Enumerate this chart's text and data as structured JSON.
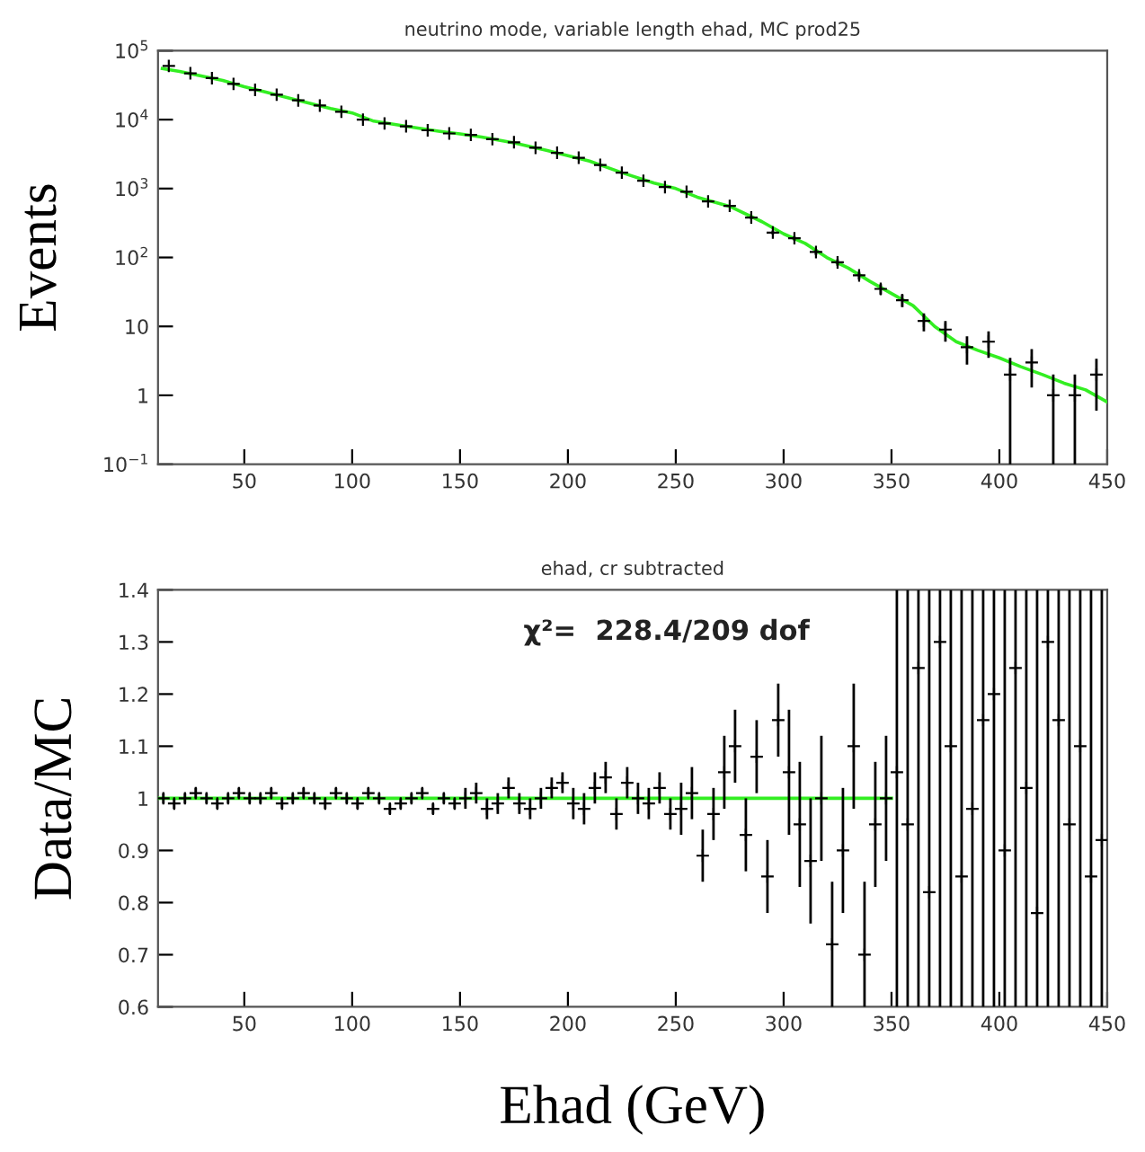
{
  "chart_data": [
    {
      "type": "scatter",
      "title": "neutrino mode, variable length ehad, MC prod25",
      "ylabel": "Events",
      "log": true,
      "xlim": [
        10,
        450
      ],
      "xticks": [
        50,
        100,
        150,
        200,
        250,
        300,
        350,
        400,
        450
      ],
      "ylim": [
        0.1,
        100000
      ],
      "yticks": [
        {
          "value": 0.1,
          "label": "10$^{−1}$"
        },
        1,
        10,
        {
          "value": 100,
          "label": "10$^{2}$"
        },
        {
          "value": 1000,
          "label": "10$^{3}$"
        },
        {
          "value": 10000,
          "label": "10$^{4}$"
        },
        {
          "value": 100000,
          "label": "10$^{5}$"
        }
      ],
      "series": [
        {
          "color": "#000000",
          "marker": "cross",
          "x": [
            15,
            25,
            35,
            45,
            55,
            65,
            75,
            85,
            95,
            105,
            115,
            125,
            135,
            145,
            155,
            165,
            175,
            185,
            195,
            205,
            215,
            225,
            235,
            245,
            255,
            265,
            275,
            285,
            295,
            305,
            315,
            325,
            335,
            345,
            355,
            365,
            375,
            385,
            395,
            405,
            415,
            425,
            435,
            445
          ],
          "values": [
            60000,
            47000,
            40000,
            33000,
            27000,
            23000,
            19000,
            16000,
            13000,
            10000,
            8800,
            8000,
            7000,
            6300,
            6000,
            5200,
            4700,
            3900,
            3300,
            2800,
            2200,
            1700,
            1300,
            1050,
            900,
            650,
            560,
            380,
            230,
            190,
            120,
            85,
            55,
            35,
            24,
            12,
            9,
            5,
            6,
            2,
            3,
            1,
            1,
            2
          ],
          "errors": [
            null,
            null,
            null,
            null,
            null,
            null,
            null,
            null,
            null,
            null,
            null,
            null,
            null,
            null,
            null,
            null,
            null,
            null,
            null,
            null,
            null,
            null,
            null,
            null,
            null,
            null,
            null,
            20,
            15,
            14,
            11,
            9,
            7,
            6,
            5,
            3.5,
            3,
            2.2,
            2.5,
            [
              0.1,
              3.5
            ],
            1.7,
            [
              0.1,
              2
            ],
            [
              0.1,
              2
            ],
            1.4
          ]
        },
        {
          "type": "line",
          "color": "#33ee22",
          "x": [
            12,
            20,
            30,
            40,
            50,
            60,
            75,
            90,
            100,
            110,
            125,
            140,
            150,
            160,
            175,
            190,
            200,
            210,
            225,
            240,
            250,
            260,
            275,
            290,
            300,
            310,
            320,
            330,
            340,
            350,
            360,
            370,
            380,
            390,
            400,
            410,
            420,
            430,
            440,
            450
          ],
          "values": [
            55000,
            50000,
            43000,
            37000,
            30000,
            25000,
            19000,
            14500,
            12500,
            9500,
            8000,
            6800,
            6200,
            5600,
            4600,
            3600,
            3000,
            2500,
            1700,
            1200,
            1000,
            750,
            550,
            330,
            220,
            160,
            100,
            70,
            45,
            30,
            20,
            10,
            6,
            4.5,
            3.5,
            2.6,
            2,
            1.5,
            1.2,
            0.8
          ]
        }
      ]
    },
    {
      "type": "scatter",
      "title": "ehad, cr subtracted",
      "ylabel": "Data/MC",
      "xlabel": "Ehad (GeV)",
      "annotations": [
        "χ²=  228.4/209 dof"
      ],
      "xlim": [
        10,
        450
      ],
      "xticks": [
        50,
        100,
        150,
        200,
        250,
        300,
        350,
        400,
        450
      ],
      "ylim": [
        0.6,
        1.4
      ],
      "yticks": [
        0.6,
        0.7,
        0.8,
        0.9,
        1,
        1.1,
        1.2,
        1.3,
        1.4
      ],
      "series": [
        {
          "color": "#000000",
          "marker": "cross",
          "x": [
            12.5,
            17.5,
            22.5,
            27.5,
            32.5,
            37.5,
            42.5,
            47.5,
            52.5,
            57.5,
            62.5,
            67.5,
            72.5,
            77.5,
            82.5,
            87.5,
            92.5,
            97.5,
            102.5,
            107.5,
            112.5,
            117.5,
            122.5,
            127.5,
            132.5,
            137.5,
            142.5,
            147.5,
            152.5,
            157.5,
            162.5,
            167.5,
            172.5,
            177.5,
            182.5,
            187.5,
            192.5,
            197.5,
            202.5,
            207.5,
            212.5,
            217.5,
            222.5,
            227.5,
            232.5,
            237.5,
            242.5,
            247.5,
            252.5,
            257.5,
            262.5,
            267.5,
            272.5,
            277.5,
            282.5,
            287.5,
            292.5,
            297.5,
            302.5,
            307.5,
            312.5,
            317.5,
            322.5,
            327.5,
            332.5,
            337.5,
            342.5,
            347.5,
            352.5,
            357.5,
            362.5,
            367.5,
            372.5,
            377.5,
            382.5,
            387.5,
            392.5,
            397.5,
            402.5,
            407.5,
            412.5,
            417.5,
            422.5,
            427.5,
            432.5,
            437.5,
            442.5,
            447.5
          ],
          "values": [
            1.0,
            0.99,
            1.0,
            1.01,
            1.0,
            0.99,
            1.0,
            1.01,
            1.0,
            1.0,
            1.01,
            0.99,
            1.0,
            1.01,
            1.0,
            0.99,
            1.01,
            1.0,
            0.99,
            1.01,
            1.0,
            0.98,
            0.99,
            1.0,
            1.01,
            0.98,
            1.0,
            0.99,
            1.0,
            1.01,
            0.98,
            0.99,
            1.02,
            0.99,
            0.98,
            1.0,
            1.02,
            1.03,
            0.99,
            0.98,
            1.02,
            1.04,
            0.97,
            1.03,
            1.0,
            0.99,
            1.02,
            0.97,
            0.98,
            1.01,
            0.89,
            0.97,
            1.05,
            1.1,
            0.93,
            1.08,
            0.85,
            1.15,
            1.05,
            0.95,
            0.88,
            1.0,
            0.72,
            0.9,
            1.1,
            0.7,
            0.95,
            1.0,
            1.05,
            0.95,
            1.25,
            0.82,
            1.3,
            1.1,
            0.85,
            0.98,
            1.15,
            1.2,
            0.9,
            1.25,
            1.02,
            0.78,
            1.3,
            1.15,
            0.95,
            1.1,
            0.85,
            0.92
          ],
          "errors": [
            0.01,
            0.01,
            0.01,
            0.01,
            0.01,
            0.01,
            0.01,
            0.01,
            0.01,
            0.01,
            0.01,
            0.01,
            0.01,
            0.01,
            0.01,
            0.01,
            0.01,
            0.01,
            0.01,
            0.01,
            0.01,
            0.01,
            0.01,
            0.01,
            0.01,
            0.01,
            0.01,
            0.01,
            0.02,
            0.02,
            0.02,
            0.02,
            0.02,
            0.02,
            0.02,
            0.02,
            0.02,
            0.02,
            0.03,
            0.03,
            0.03,
            0.03,
            0.03,
            0.03,
            0.03,
            0.03,
            0.03,
            0.03,
            0.05,
            0.05,
            0.05,
            0.05,
            0.07,
            0.07,
            0.07,
            0.07,
            0.07,
            0.07,
            0.12,
            0.12,
            0.12,
            0.12,
            0.12,
            0.12,
            0.12,
            [
              0.6,
              0.84
            ],
            0.12,
            0.12,
            [
              0.6,
              1.4
            ],
            [
              0.6,
              1.4
            ],
            [
              0.6,
              1.4
            ],
            [
              0.6,
              1.4
            ],
            [
              0.6,
              1.4
            ],
            [
              0.6,
              1.4
            ],
            [
              0.6,
              1.4
            ],
            [
              0.6,
              1.4
            ],
            [
              0.6,
              1.4
            ],
            [
              0.6,
              1.4
            ],
            [
              0.6,
              1.4
            ],
            [
              0.6,
              1.4
            ],
            [
              0.6,
              1.4
            ],
            [
              0.6,
              1.4
            ],
            [
              0.6,
              1.4
            ],
            [
              0.6,
              1.4
            ],
            [
              0.6,
              1.4
            ],
            [
              0.6,
              1.4
            ],
            [
              0.6,
              1.4
            ],
            [
              0.6,
              1.4
            ]
          ]
        },
        {
          "type": "line",
          "color": "#33ee22",
          "x": [
            10,
            350
          ],
          "values": [
            1,
            1
          ]
        }
      ]
    }
  ]
}
